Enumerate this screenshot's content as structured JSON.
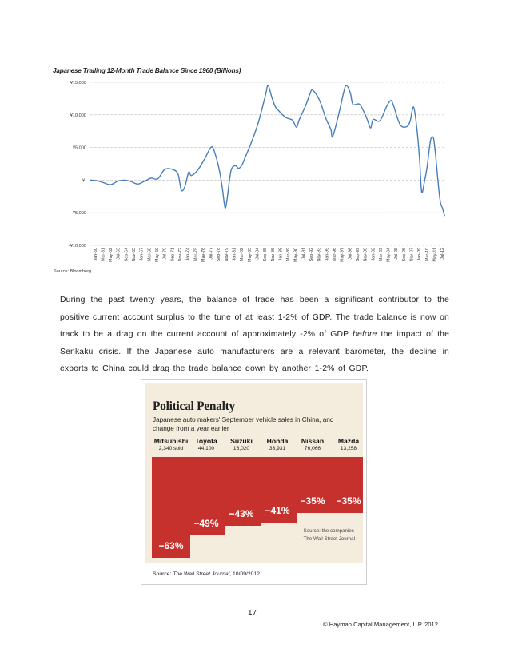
{
  "chart1": {
    "title": "Japanese Trailing 12-Month Trade Balance Since 1960 (Billions)",
    "source": "Source: Bloomberg.",
    "y_tick_labels": [
      "¥15,000",
      "¥10,000",
      "¥5,000",
      "¥-",
      "-¥5,000",
      "-¥10,000"
    ],
    "x_tick_labels": [
      "Jan-60",
      "Mar-61",
      "May-62",
      "Jul-63",
      "Sep-64",
      "Nov-65",
      "Jan-67",
      "Mar-68",
      "May-69",
      "Jul-70",
      "Sep-71",
      "Nov-72",
      "Jan-74",
      "Mar-75",
      "May-76",
      "Jul-77",
      "Sep-78",
      "Nov-79",
      "Jan-81",
      "Mar-82",
      "May-83",
      "Jul-84",
      "Sep-85",
      "Nov-86",
      "Jan-88",
      "Mar-89",
      "May-90",
      "Jul-91",
      "Sep-92",
      "Nov-93",
      "Jan-95",
      "Mar-96",
      "May-97",
      "Jul-98",
      "Sep-99",
      "Nov-00",
      "Jan-02",
      "Mar-03",
      "May-04",
      "Jul-05",
      "Sep-06",
      "Nov-07",
      "Jan-09",
      "Mar-10",
      "May-11",
      "Jul-12"
    ]
  },
  "chart_data": [
    {
      "type": "line",
      "title": "Japanese Trailing 12-Month Trade Balance Since 1960 (Billions)",
      "xlabel": "",
      "ylabel": "",
      "ylim": [
        -10000,
        15000
      ],
      "grid": "horizontal dashed",
      "x": [
        1960.0,
        1961.0,
        1962.0,
        1963.0,
        1964.0,
        1965.0,
        1966.0,
        1967.0,
        1968.0,
        1969.0,
        1970.0,
        1971.0,
        1972.0,
        1973.0,
        1973.5,
        1974.0,
        1974.6,
        1975.0,
        1976.0,
        1977.0,
        1978.0,
        1978.6,
        1979.2,
        1979.6,
        1980.0,
        1980.3,
        1980.7,
        1981.0,
        1981.6,
        1982.0,
        1982.5,
        1983.0,
        1984.0,
        1985.0,
        1986.0,
        1986.4,
        1987.0,
        1987.5,
        1988.0,
        1989.0,
        1990.0,
        1990.6,
        1991.0,
        1992.0,
        1992.6,
        1993.0,
        1994.0,
        1995.0,
        1995.7,
        1996.0,
        1997.0,
        1997.6,
        1998.0,
        1998.6,
        1999.0,
        2000.0,
        2001.0,
        2001.6,
        2002.0,
        2003.0,
        2004.0,
        2004.6,
        2005.0,
        2006.0,
        2007.0,
        2007.5,
        2008.0,
        2008.5,
        2008.9,
        2009.2,
        2009.6,
        2010.0,
        2010.5,
        2010.8,
        2011.0,
        2011.3,
        2011.7,
        2012.0,
        2012.3,
        2012.6
      ],
      "series": [
        {
          "name": "",
          "values": [
            0,
            -100,
            -400,
            -700,
            -200,
            0,
            -200,
            -600,
            -200,
            300,
            200,
            1600,
            1700,
            1000,
            -1500,
            -1100,
            1200,
            700,
            1600,
            3300,
            5100,
            3800,
            1300,
            -1200,
            -4200,
            -3000,
            300,
            1800,
            2200,
            1800,
            2300,
            3500,
            6000,
            9000,
            13000,
            14500,
            12500,
            11200,
            10600,
            9600,
            9200,
            8100,
            9200,
            11500,
            13200,
            13800,
            12300,
            9400,
            7800,
            6700,
            10600,
            13400,
            14500,
            13400,
            11600,
            11600,
            9600,
            8000,
            9300,
            9100,
            11300,
            12200,
            11500,
            8500,
            8200,
            9100,
            11200,
            7800,
            3000,
            -1800,
            -300,
            2000,
            6000,
            6600,
            6200,
            3500,
            -1000,
            -3500,
            -4300,
            -5500
          ]
        }
      ]
    },
    {
      "type": "bar",
      "title": "Political Penalty",
      "subtitle": "Japanese auto makers' September vehicle sales in China, and change from a year earlier",
      "categories": [
        "Mitsubishi",
        "Toyota",
        "Suzuki",
        "Honda",
        "Nissan",
        "Mazda"
      ],
      "series": [
        {
          "name": "",
          "values": [
            -63,
            -49,
            -43,
            -41,
            -35,
            -35
          ]
        }
      ],
      "sold_labels": [
        "2,340 sold",
        "44,100",
        "16,020",
        "33,931",
        "76,066",
        "13,258"
      ],
      "value_labels": [
        "−63%",
        "−49%",
        "−43%",
        "−41%",
        "−35%",
        "−35%"
      ],
      "bar_color": "#c6312d",
      "background_color": "#f4ecdc"
    }
  ],
  "paragraph": {
    "part1": "During the past twenty years, the balance of trade has been a significant contributor to the positive current account surplus to the tune of at least 1-2% of GDP.  The trade balance is now on track to be a drag on the current account of approximately -2% of GDP ",
    "emph": "before",
    "part2": " the impact of the Senkaku crisis.   If the Japanese auto manufacturers are a relevant barometer, the decline in exports to China could drag the trade balance down by another 1-2% of GDP."
  },
  "figure": {
    "title": "Political Penalty",
    "subtitle": "Japanese auto makers' September vehicle sales in China, and change from a year earlier",
    "source_line1": "Source: the companies",
    "source_line2": "The Wall Street Journal",
    "caption_prefix": "Source: ",
    "caption_emph": "The Wall Street Journal",
    "caption_suffix": ", 10/09/2012."
  },
  "footer": {
    "page_number": "17",
    "copyright": "© Hayman Capital Management, L.P. 2012"
  }
}
